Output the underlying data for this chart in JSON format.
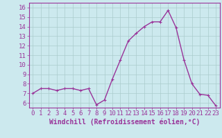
{
  "x": [
    0,
    1,
    2,
    3,
    4,
    5,
    6,
    7,
    8,
    9,
    10,
    11,
    12,
    13,
    14,
    15,
    16,
    17,
    18,
    19,
    20,
    21,
    22,
    23
  ],
  "y": [
    7.0,
    7.5,
    7.5,
    7.3,
    7.5,
    7.5,
    7.3,
    7.5,
    5.8,
    6.3,
    8.5,
    10.5,
    12.5,
    13.3,
    14.0,
    14.5,
    14.5,
    15.7,
    13.9,
    10.5,
    8.0,
    6.9,
    6.8,
    5.7
  ],
  "line_color": "#993399",
  "marker": "+",
  "marker_size": 3,
  "bg_color": "#cce9ee",
  "grid_color": "#aacccc",
  "xlabel": "Windchill (Refroidissement éolien,°C)",
  "ylim": [
    5.5,
    16.5
  ],
  "yticks": [
    6,
    7,
    8,
    9,
    10,
    11,
    12,
    13,
    14,
    15,
    16
  ],
  "xticks": [
    0,
    1,
    2,
    3,
    4,
    5,
    6,
    7,
    8,
    9,
    10,
    11,
    12,
    13,
    14,
    15,
    16,
    17,
    18,
    19,
    20,
    21,
    22,
    23
  ],
  "axis_color": "#993399",
  "tick_color": "#993399",
  "label_color": "#993399",
  "xlabel_fontsize": 7,
  "tick_fontsize": 6.5,
  "line_width": 1.0,
  "marker_edge_width": 0.8
}
